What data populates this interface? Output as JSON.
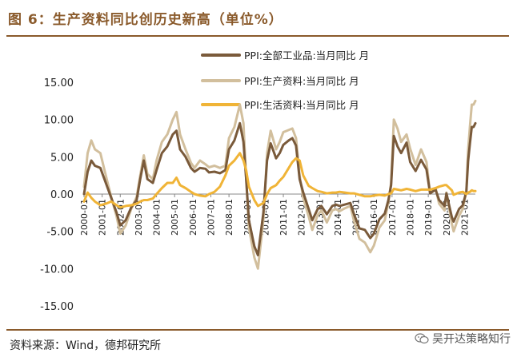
{
  "figure": {
    "title": "图 6：生产资料同比创历史新高（单位%）",
    "source": "资料来源：Wind，德邦研究所",
    "watermark": "吴开达策略知行",
    "watermark_icon": "wechat-icon"
  },
  "chart_data": {
    "type": "line",
    "title": "图 6：生产资料同比创历史新高（单位%）",
    "xlabel": "",
    "ylabel": "",
    "ylim": [
      -15,
      15
    ],
    "yticks": [
      15,
      10,
      5,
      0,
      -5,
      -10,
      -15
    ],
    "ytick_labels": [
      "15.00",
      "10.00",
      "5.00",
      "0.00",
      "-5.00",
      "-10.00",
      "-15.00"
    ],
    "xlim": [
      2000.0,
      2021.6
    ],
    "xtick_labels": [
      "2000-01",
      "2001-01",
      "2002-01",
      "2003-01",
      "2004-01",
      "2005-01",
      "2006-01",
      "2007-01",
      "2008-01",
      "2009-01",
      "2010-01",
      "2011-01",
      "2012-01",
      "2013-01",
      "2014-01",
      "2015-01",
      "2016-01",
      "2017-01",
      "2018-01",
      "2019-01",
      "2020-01",
      "2021-01"
    ],
    "grid": false,
    "legend_position": "top-right",
    "series": [
      {
        "name": "PPI:全部工业品:当月同比  月",
        "color": "#7a5a3a",
        "points": [
          [
            2000.0,
            0.0
          ],
          [
            2000.2,
            3.0
          ],
          [
            2000.4,
            4.5
          ],
          [
            2000.6,
            3.8
          ],
          [
            2000.9,
            3.5
          ],
          [
            2001.2,
            1.5
          ],
          [
            2001.5,
            -0.5
          ],
          [
            2001.8,
            -2.5
          ],
          [
            2002.0,
            -4.2
          ],
          [
            2002.3,
            -3.5
          ],
          [
            2002.6,
            -1.8
          ],
          [
            2002.9,
            -0.8
          ],
          [
            2003.1,
            2.0
          ],
          [
            2003.3,
            4.5
          ],
          [
            2003.5,
            2.0
          ],
          [
            2003.8,
            1.5
          ],
          [
            2004.0,
            3.2
          ],
          [
            2004.3,
            5.5
          ],
          [
            2004.6,
            6.4
          ],
          [
            2004.9,
            8.0
          ],
          [
            2005.1,
            8.5
          ],
          [
            2005.3,
            6.0
          ],
          [
            2005.6,
            5.0
          ],
          [
            2005.9,
            3.5
          ],
          [
            2006.1,
            3.0
          ],
          [
            2006.4,
            3.5
          ],
          [
            2006.7,
            3.4
          ],
          [
            2006.9,
            2.9
          ],
          [
            2007.2,
            3.0
          ],
          [
            2007.5,
            2.8
          ],
          [
            2007.8,
            3.2
          ],
          [
            2008.0,
            6.0
          ],
          [
            2008.3,
            7.2
          ],
          [
            2008.6,
            9.5
          ],
          [
            2008.8,
            7.0
          ],
          [
            2008.95,
            2.0
          ],
          [
            2009.1,
            -3.5
          ],
          [
            2009.4,
            -7.0
          ],
          [
            2009.6,
            -8.2
          ],
          [
            2009.9,
            -2.5
          ],
          [
            2010.1,
            4.5
          ],
          [
            2010.3,
            6.8
          ],
          [
            2010.6,
            4.8
          ],
          [
            2010.8,
            5.5
          ],
          [
            2011.0,
            6.6
          ],
          [
            2011.3,
            7.2
          ],
          [
            2011.5,
            7.5
          ],
          [
            2011.7,
            6.5
          ],
          [
            2011.9,
            2.0
          ],
          [
            2012.1,
            0.2
          ],
          [
            2012.4,
            -2.0
          ],
          [
            2012.6,
            -3.5
          ],
          [
            2012.9,
            -2.0
          ],
          [
            2013.1,
            -1.6
          ],
          [
            2013.4,
            -2.7
          ],
          [
            2013.7,
            -1.6
          ],
          [
            2013.9,
            -1.4
          ],
          [
            2014.1,
            -1.6
          ],
          [
            2014.4,
            -1.4
          ],
          [
            2014.7,
            -1.2
          ],
          [
            2014.9,
            -2.7
          ],
          [
            2015.2,
            -4.6
          ],
          [
            2015.5,
            -4.8
          ],
          [
            2015.8,
            -5.9
          ],
          [
            2016.0,
            -5.3
          ],
          [
            2016.3,
            -3.4
          ],
          [
            2016.6,
            -2.6
          ],
          [
            2016.8,
            -0.8
          ],
          [
            2016.95,
            1.2
          ],
          [
            2017.1,
            7.8
          ],
          [
            2017.3,
            6.4
          ],
          [
            2017.5,
            5.5
          ],
          [
            2017.8,
            6.9
          ],
          [
            2018.0,
            4.3
          ],
          [
            2018.3,
            3.1
          ],
          [
            2018.6,
            4.6
          ],
          [
            2018.9,
            3.3
          ],
          [
            2019.1,
            0.1
          ],
          [
            2019.4,
            0.6
          ],
          [
            2019.6,
            -0.8
          ],
          [
            2019.9,
            -1.6
          ],
          [
            2020.0,
            0.1
          ],
          [
            2020.3,
            -3.1
          ],
          [
            2020.4,
            -3.7
          ],
          [
            2020.7,
            -2.0
          ],
          [
            2020.9,
            -1.5
          ],
          [
            2021.1,
            0.3
          ],
          [
            2021.2,
            4.4
          ],
          [
            2021.3,
            6.8
          ],
          [
            2021.4,
            9.0
          ],
          [
            2021.5,
            9.0
          ],
          [
            2021.6,
            9.5
          ]
        ]
      },
      {
        "name": "PPI:生产资料:当月同比  月",
        "color": "#d2bf9d",
        "points": [
          [
            2000.0,
            1.0
          ],
          [
            2000.2,
            5.5
          ],
          [
            2000.4,
            7.2
          ],
          [
            2000.6,
            6.0
          ],
          [
            2000.9,
            5.5
          ],
          [
            2001.2,
            2.5
          ],
          [
            2001.5,
            -0.4
          ],
          [
            2001.8,
            -3.0
          ],
          [
            2002.0,
            -5.3
          ],
          [
            2002.3,
            -4.2
          ],
          [
            2002.6,
            -2.0
          ],
          [
            2002.9,
            -0.4
          ],
          [
            2003.1,
            2.5
          ],
          [
            2003.3,
            5.2
          ],
          [
            2003.5,
            2.7
          ],
          [
            2003.8,
            2.0
          ],
          [
            2004.0,
            4.5
          ],
          [
            2004.3,
            7.0
          ],
          [
            2004.6,
            8.0
          ],
          [
            2004.9,
            10.0
          ],
          [
            2005.1,
            11.0
          ],
          [
            2005.3,
            8.0
          ],
          [
            2005.6,
            6.0
          ],
          [
            2005.9,
            4.2
          ],
          [
            2006.1,
            3.5
          ],
          [
            2006.4,
            4.5
          ],
          [
            2006.7,
            4.0
          ],
          [
            2006.9,
            3.6
          ],
          [
            2007.2,
            3.8
          ],
          [
            2007.5,
            3.5
          ],
          [
            2007.8,
            3.8
          ],
          [
            2008.0,
            7.5
          ],
          [
            2008.3,
            9.0
          ],
          [
            2008.6,
            12.0
          ],
          [
            2008.8,
            9.5
          ],
          [
            2008.95,
            2.0
          ],
          [
            2009.1,
            -4.5
          ],
          [
            2009.4,
            -8.5
          ],
          [
            2009.6,
            -10.0
          ],
          [
            2009.9,
            -3.5
          ],
          [
            2010.1,
            5.5
          ],
          [
            2010.3,
            8.5
          ],
          [
            2010.6,
            6.0
          ],
          [
            2010.8,
            7.0
          ],
          [
            2011.0,
            8.3
          ],
          [
            2011.3,
            8.6
          ],
          [
            2011.5,
            8.8
          ],
          [
            2011.7,
            7.5
          ],
          [
            2011.9,
            2.5
          ],
          [
            2012.1,
            -0.5
          ],
          [
            2012.4,
            -3.0
          ],
          [
            2012.6,
            -4.8
          ],
          [
            2012.9,
            -2.8
          ],
          [
            2013.1,
            -2.2
          ],
          [
            2013.4,
            -3.8
          ],
          [
            2013.7,
            -2.2
          ],
          [
            2013.9,
            -2.0
          ],
          [
            2014.1,
            -2.3
          ],
          [
            2014.4,
            -1.9
          ],
          [
            2014.7,
            -1.6
          ],
          [
            2014.9,
            -3.6
          ],
          [
            2015.2,
            -6.0
          ],
          [
            2015.5,
            -6.5
          ],
          [
            2015.8,
            -7.8
          ],
          [
            2016.0,
            -6.9
          ],
          [
            2016.3,
            -4.5
          ],
          [
            2016.6,
            -3.5
          ],
          [
            2016.8,
            -1.1
          ],
          [
            2016.95,
            1.5
          ],
          [
            2017.1,
            10.0
          ],
          [
            2017.3,
            8.8
          ],
          [
            2017.5,
            7.0
          ],
          [
            2017.8,
            8.0
          ],
          [
            2018.0,
            6.1
          ],
          [
            2018.3,
            3.9
          ],
          [
            2018.6,
            6.0
          ],
          [
            2018.9,
            4.3
          ],
          [
            2019.1,
            0.1
          ],
          [
            2019.4,
            0.8
          ],
          [
            2019.6,
            -1.3
          ],
          [
            2019.9,
            -2.2
          ],
          [
            2020.0,
            0.2
          ],
          [
            2020.3,
            -4.0
          ],
          [
            2020.4,
            -5.0
          ],
          [
            2020.7,
            -2.9
          ],
          [
            2020.9,
            -2.0
          ],
          [
            2021.1,
            0.4
          ],
          [
            2021.2,
            5.9
          ],
          [
            2021.3,
            9.1
          ],
          [
            2021.4,
            12.0
          ],
          [
            2021.5,
            12.0
          ],
          [
            2021.6,
            12.5
          ]
        ]
      },
      {
        "name": "PPI:生活资料:当月同比  月",
        "color": "#f0b437",
        "points": [
          [
            2000.0,
            -1.0
          ],
          [
            2000.2,
            0.2
          ],
          [
            2000.4,
            -0.5
          ],
          [
            2000.6,
            -1.0
          ],
          [
            2000.9,
            -1.5
          ],
          [
            2001.2,
            -1.3
          ],
          [
            2001.5,
            -1.0
          ],
          [
            2001.8,
            -1.5
          ],
          [
            2002.0,
            -1.8
          ],
          [
            2002.3,
            -1.6
          ],
          [
            2002.6,
            -1.5
          ],
          [
            2002.9,
            -1.3
          ],
          [
            2003.1,
            -1.0
          ],
          [
            2003.3,
            -0.8
          ],
          [
            2003.5,
            -0.8
          ],
          [
            2003.8,
            -0.6
          ],
          [
            2004.0,
            0.0
          ],
          [
            2004.3,
            0.8
          ],
          [
            2004.6,
            1.5
          ],
          [
            2004.9,
            1.5
          ],
          [
            2005.1,
            2.2
          ],
          [
            2005.3,
            1.2
          ],
          [
            2005.6,
            0.8
          ],
          [
            2005.9,
            0.3
          ],
          [
            2006.1,
            0.0
          ],
          [
            2006.4,
            -0.2
          ],
          [
            2006.7,
            -0.3
          ],
          [
            2006.9,
            0.0
          ],
          [
            2007.2,
            0.3
          ],
          [
            2007.5,
            1.0
          ],
          [
            2007.8,
            2.5
          ],
          [
            2008.0,
            3.8
          ],
          [
            2008.3,
            4.5
          ],
          [
            2008.6,
            5.5
          ],
          [
            2008.8,
            4.5
          ],
          [
            2008.95,
            3.2
          ],
          [
            2009.1,
            1.0
          ],
          [
            2009.4,
            -0.8
          ],
          [
            2009.6,
            -1.6
          ],
          [
            2009.9,
            -1.2
          ],
          [
            2010.1,
            0.0
          ],
          [
            2010.3,
            0.8
          ],
          [
            2010.6,
            1.2
          ],
          [
            2010.8,
            1.8
          ],
          [
            2011.0,
            2.3
          ],
          [
            2011.3,
            3.5
          ],
          [
            2011.5,
            4.3
          ],
          [
            2011.7,
            4.8
          ],
          [
            2011.9,
            4.5
          ],
          [
            2012.1,
            2.5
          ],
          [
            2012.4,
            1.1
          ],
          [
            2012.6,
            0.8
          ],
          [
            2012.9,
            0.4
          ],
          [
            2013.1,
            0.3
          ],
          [
            2013.4,
            0.1
          ],
          [
            2013.7,
            0.2
          ],
          [
            2013.9,
            0.2
          ],
          [
            2014.1,
            0.3
          ],
          [
            2014.4,
            0.2
          ],
          [
            2014.7,
            0.1
          ],
          [
            2014.9,
            0.1
          ],
          [
            2015.2,
            -0.1
          ],
          [
            2015.5,
            -0.3
          ],
          [
            2015.8,
            -0.3
          ],
          [
            2016.0,
            -0.2
          ],
          [
            2016.3,
            -0.1
          ],
          [
            2016.6,
            -0.2
          ],
          [
            2016.8,
            0.0
          ],
          [
            2016.95,
            0.1
          ],
          [
            2017.1,
            0.7
          ],
          [
            2017.3,
            0.6
          ],
          [
            2017.5,
            0.5
          ],
          [
            2017.8,
            0.7
          ],
          [
            2018.0,
            0.6
          ],
          [
            2018.3,
            0.4
          ],
          [
            2018.6,
            0.6
          ],
          [
            2018.9,
            0.6
          ],
          [
            2019.1,
            0.6
          ],
          [
            2019.4,
            0.8
          ],
          [
            2019.6,
            1.0
          ],
          [
            2019.9,
            1.2
          ],
          [
            2020.0,
            1.2
          ],
          [
            2020.3,
            0.5
          ],
          [
            2020.4,
            -0.1
          ],
          [
            2020.7,
            0.2
          ],
          [
            2020.9,
            0.3
          ],
          [
            2021.1,
            0.0
          ],
          [
            2021.2,
            0.2
          ],
          [
            2021.3,
            0.3
          ],
          [
            2021.4,
            0.5
          ],
          [
            2021.5,
            0.4
          ],
          [
            2021.6,
            0.4
          ]
        ]
      }
    ]
  }
}
